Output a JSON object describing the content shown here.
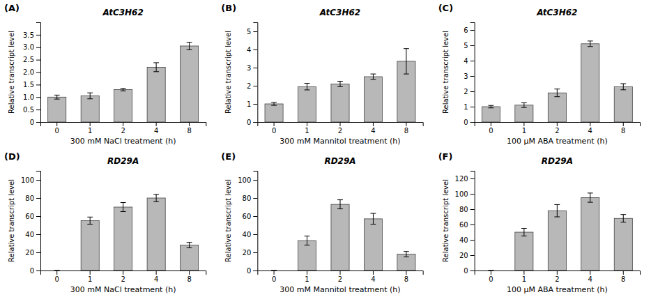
{
  "chart_data": [
    {
      "type": "bar",
      "title": "AtC3H62",
      "annotations": [
        "(A)"
      ],
      "xlabel": "300 mM NaCl treatment (h)",
      "ylabel": "Relative transcript level",
      "categories": [
        "0",
        "1",
        "2",
        "4",
        "8"
      ],
      "values": [
        1.0,
        1.05,
        1.3,
        2.2,
        3.05
      ],
      "errors": [
        0.08,
        0.12,
        0.05,
        0.18,
        0.15
      ],
      "color": "#b8b8b8",
      "ylim": [
        0,
        4.0
      ],
      "yticks": [
        0,
        0.5,
        {
          "value": 1.0,
          "label": "1.0"
        },
        1.5,
        {
          "value": 2.0,
          "label": "2.0"
        },
        2.5,
        {
          "value": 3.0,
          "label": "3.0"
        },
        3.5
      ],
      "grid": false
    },
    {
      "type": "bar",
      "title": "AtC3H62",
      "annotations": [
        "(B)"
      ],
      "xlabel": "300 mM Mannitol treatment (h)",
      "ylabel": "Relative transcript level",
      "categories": [
        "0",
        "1",
        "2",
        "4",
        "8"
      ],
      "values": [
        1.0,
        1.95,
        2.1,
        2.5,
        3.35
      ],
      "errors": [
        0.08,
        0.18,
        0.15,
        0.15,
        0.7
      ],
      "color": "#b8b8b8",
      "ylim": [
        0,
        5.5
      ],
      "yticks": [
        0,
        1,
        2,
        3,
        4,
        5
      ],
      "grid": false
    },
    {
      "type": "bar",
      "title": "AtC3H62",
      "annotations": [
        "(C)"
      ],
      "xlabel": "100 μM ABA treatment (h)",
      "ylabel": "Relative transcript level",
      "categories": [
        "0",
        "1",
        "2",
        "4",
        "8"
      ],
      "values": [
        1.0,
        1.1,
        1.9,
        5.1,
        2.3
      ],
      "errors": [
        0.08,
        0.15,
        0.25,
        0.18,
        0.2
      ],
      "color": "#b8b8b8",
      "ylim": [
        0,
        6.5
      ],
      "yticks": [
        0,
        1,
        2,
        3,
        4,
        5,
        6
      ],
      "grid": false
    },
    {
      "type": "bar",
      "title": "RD29A",
      "annotations": [
        "(D)"
      ],
      "xlabel": "300 mM NaCl treatment (h)",
      "ylabel": "Relative transcript level",
      "categories": [
        "0",
        "1",
        "2",
        "4",
        "8"
      ],
      "values": [
        0.0,
        55.0,
        70.0,
        80.0,
        28.0
      ],
      "errors": [
        0.0,
        4.0,
        5.0,
        4.0,
        3.0
      ],
      "color": "#b8b8b8",
      "ylim": [
        0,
        110
      ],
      "yticks": [
        0,
        20,
        40,
        60,
        80,
        100
      ],
      "grid": false
    },
    {
      "type": "bar",
      "title": "RD29A",
      "annotations": [
        "(E)"
      ],
      "xlabel": "300 mM Mannitol treatment (h)",
      "ylabel": "Relative transcript level",
      "categories": [
        "0",
        "1",
        "2",
        "4",
        "8"
      ],
      "values": [
        0.0,
        33.0,
        73.0,
        57.0,
        18.0
      ],
      "errors": [
        0.0,
        5.0,
        5.0,
        6.0,
        3.0
      ],
      "color": "#b8b8b8",
      "ylim": [
        0,
        110
      ],
      "yticks": [
        0,
        20,
        40,
        60,
        80,
        100
      ],
      "grid": false
    },
    {
      "type": "bar",
      "title": "RD29A",
      "annotations": [
        "(F)"
      ],
      "xlabel": "100 μM ABA treatment (h)",
      "ylabel": "Relative transcript level",
      "categories": [
        "0",
        "1",
        "2",
        "4",
        "8"
      ],
      "values": [
        0.0,
        50.0,
        78.0,
        95.0,
        68.0
      ],
      "errors": [
        0.0,
        5.0,
        8.0,
        6.0,
        5.0
      ],
      "color": "#b8b8b8",
      "ylim": [
        0,
        130
      ],
      "yticks": [
        0,
        20,
        40,
        60,
        80,
        100,
        120
      ],
      "grid": false
    }
  ]
}
